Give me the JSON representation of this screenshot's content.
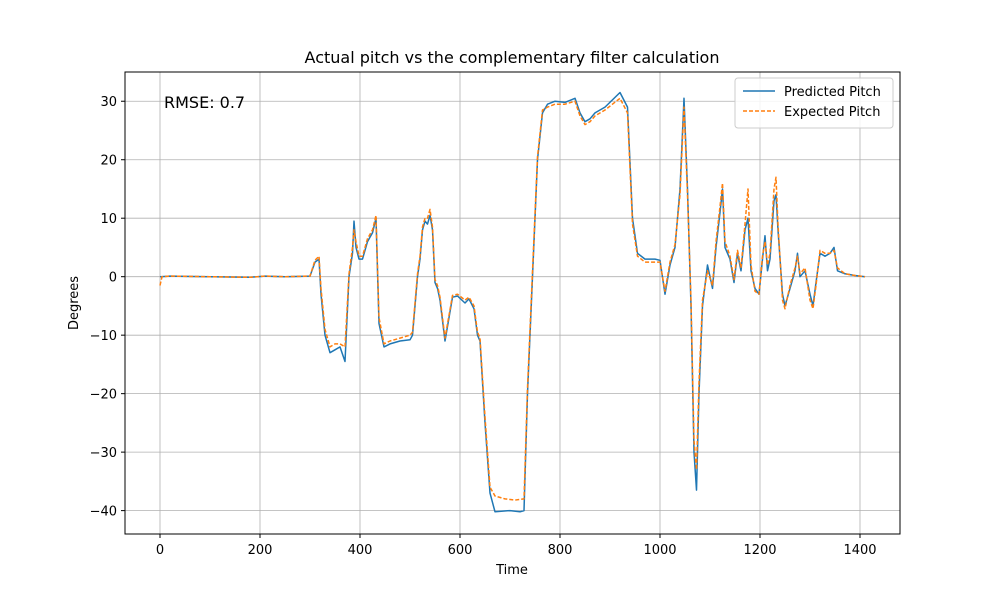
{
  "chart_data": {
    "type": "line",
    "title": "Actual pitch vs the complementary filter calculation",
    "xlabel": "Time",
    "ylabel": "Degrees",
    "xlim": [
      -70,
      1480
    ],
    "ylim": [
      -44,
      35
    ],
    "xticks": [
      0,
      200,
      400,
      600,
      800,
      1000,
      1200,
      1400
    ],
    "yticks": [
      -40,
      -30,
      -20,
      -10,
      0,
      10,
      20,
      30
    ],
    "grid": true,
    "legend_position": "top-right",
    "annotation": "RMSE: 0.7",
    "colors": {
      "predicted": "#1f77b4",
      "expected": "#ff7f0e"
    },
    "series": [
      {
        "name": "Predicted Pitch",
        "style": "solid",
        "points": [
          [
            0,
            0
          ],
          [
            20,
            0.1
          ],
          [
            100,
            0
          ],
          [
            180,
            -0.1
          ],
          [
            210,
            0.1
          ],
          [
            250,
            0
          ],
          [
            300,
            0.1
          ],
          [
            310,
            2.5
          ],
          [
            318,
            3
          ],
          [
            322,
            -3
          ],
          [
            330,
            -10
          ],
          [
            340,
            -13
          ],
          [
            350,
            -12.5
          ],
          [
            360,
            -12
          ],
          [
            370,
            -14.5
          ],
          [
            378,
            0
          ],
          [
            385,
            4
          ],
          [
            388,
            9.5
          ],
          [
            392,
            5
          ],
          [
            398,
            3
          ],
          [
            405,
            3
          ],
          [
            415,
            6
          ],
          [
            425,
            7.5
          ],
          [
            432,
            10
          ],
          [
            438,
            -8
          ],
          [
            448,
            -12
          ],
          [
            460,
            -11.5
          ],
          [
            480,
            -11
          ],
          [
            500,
            -10.8
          ],
          [
            505,
            -10
          ],
          [
            510,
            -5
          ],
          [
            515,
            0
          ],
          [
            520,
            3
          ],
          [
            525,
            8
          ],
          [
            530,
            9.5
          ],
          [
            535,
            9
          ],
          [
            540,
            10.5
          ],
          [
            545,
            8
          ],
          [
            550,
            -1
          ],
          [
            555,
            -2
          ],
          [
            560,
            -4
          ],
          [
            570,
            -11
          ],
          [
            585,
            -3.5
          ],
          [
            595,
            -3.3
          ],
          [
            610,
            -4.5
          ],
          [
            618,
            -3.8
          ],
          [
            628,
            -5.5
          ],
          [
            635,
            -10
          ],
          [
            640,
            -11
          ],
          [
            650,
            -25
          ],
          [
            660,
            -37
          ],
          [
            670,
            -40.2
          ],
          [
            700,
            -40
          ],
          [
            720,
            -40.2
          ],
          [
            728,
            -40
          ],
          [
            735,
            -20
          ],
          [
            745,
            0
          ],
          [
            755,
            20
          ],
          [
            765,
            28
          ],
          [
            775,
            29.5
          ],
          [
            790,
            30
          ],
          [
            810,
            29.8
          ],
          [
            830,
            30.5
          ],
          [
            840,
            28
          ],
          [
            850,
            26.5
          ],
          [
            860,
            27
          ],
          [
            870,
            28
          ],
          [
            890,
            29
          ],
          [
            920,
            31.5
          ],
          [
            935,
            29
          ],
          [
            945,
            10
          ],
          [
            955,
            4
          ],
          [
            970,
            3
          ],
          [
            990,
            3
          ],
          [
            1000,
            2.8
          ],
          [
            1010,
            -3
          ],
          [
            1020,
            2
          ],
          [
            1030,
            5
          ],
          [
            1040,
            15
          ],
          [
            1048,
            30.5
          ],
          [
            1055,
            15
          ],
          [
            1062,
            -5
          ],
          [
            1068,
            -30
          ],
          [
            1073,
            -36.5
          ],
          [
            1078,
            -20
          ],
          [
            1085,
            -5
          ],
          [
            1095,
            2
          ],
          [
            1105,
            -2
          ],
          [
            1112,
            5
          ],
          [
            1120,
            11
          ],
          [
            1125,
            15
          ],
          [
            1130,
            5
          ],
          [
            1140,
            3
          ],
          [
            1148,
            -1
          ],
          [
            1155,
            4
          ],
          [
            1162,
            1
          ],
          [
            1170,
            8
          ],
          [
            1176,
            10
          ],
          [
            1182,
            1
          ],
          [
            1190,
            -2
          ],
          [
            1198,
            -3
          ],
          [
            1205,
            3
          ],
          [
            1210,
            7
          ],
          [
            1215,
            1
          ],
          [
            1220,
            3
          ],
          [
            1228,
            13
          ],
          [
            1232,
            14
          ],
          [
            1236,
            8
          ],
          [
            1245,
            -3
          ],
          [
            1250,
            -5
          ],
          [
            1260,
            -2
          ],
          [
            1270,
            1
          ],
          [
            1275,
            4
          ],
          [
            1280,
            0
          ],
          [
            1290,
            1
          ],
          [
            1300,
            -3
          ],
          [
            1306,
            -5
          ],
          [
            1312,
            -1
          ],
          [
            1320,
            4
          ],
          [
            1330,
            3.5
          ],
          [
            1340,
            4
          ],
          [
            1348,
            5
          ],
          [
            1355,
            1
          ],
          [
            1370,
            0.5
          ],
          [
            1390,
            0.2
          ],
          [
            1410,
            0
          ]
        ]
      },
      {
        "name": "Expected Pitch",
        "style": "dashed",
        "points": [
          [
            0,
            -1.5
          ],
          [
            4,
            0
          ],
          [
            20,
            0.1
          ],
          [
            100,
            0
          ],
          [
            180,
            -0.1
          ],
          [
            210,
            0.1
          ],
          [
            250,
            0
          ],
          [
            300,
            0.1
          ],
          [
            310,
            2.8
          ],
          [
            318,
            3.5
          ],
          [
            322,
            -2
          ],
          [
            330,
            -9
          ],
          [
            340,
            -12
          ],
          [
            350,
            -11.5
          ],
          [
            360,
            -11.5
          ],
          [
            370,
            -12
          ],
          [
            378,
            0.5
          ],
          [
            385,
            5
          ],
          [
            388,
            8
          ],
          [
            392,
            6
          ],
          [
            398,
            3.5
          ],
          [
            405,
            3.5
          ],
          [
            415,
            6.5
          ],
          [
            425,
            8
          ],
          [
            432,
            10.5
          ],
          [
            438,
            -7
          ],
          [
            448,
            -11.5
          ],
          [
            460,
            -11
          ],
          [
            480,
            -10.5
          ],
          [
            500,
            -10
          ],
          [
            505,
            -9.5
          ],
          [
            510,
            -4.5
          ],
          [
            515,
            0.5
          ],
          [
            520,
            3.5
          ],
          [
            525,
            8.5
          ],
          [
            530,
            10
          ],
          [
            535,
            10
          ],
          [
            540,
            11.5
          ],
          [
            545,
            8.5
          ],
          [
            550,
            -0.5
          ],
          [
            555,
            -1.5
          ],
          [
            560,
            -3.5
          ],
          [
            570,
            -10.5
          ],
          [
            585,
            -3.2
          ],
          [
            595,
            -3
          ],
          [
            610,
            -4
          ],
          [
            618,
            -3.5
          ],
          [
            628,
            -5
          ],
          [
            635,
            -9.5
          ],
          [
            640,
            -10.5
          ],
          [
            650,
            -24
          ],
          [
            660,
            -36
          ],
          [
            670,
            -37.5
          ],
          [
            690,
            -38
          ],
          [
            710,
            -38.2
          ],
          [
            728,
            -38
          ],
          [
            735,
            -19
          ],
          [
            745,
            1
          ],
          [
            755,
            20.5
          ],
          [
            765,
            28.5
          ],
          [
            775,
            29
          ],
          [
            790,
            29.5
          ],
          [
            810,
            29.5
          ],
          [
            830,
            30
          ],
          [
            840,
            27.5
          ],
          [
            850,
            26
          ],
          [
            860,
            26.5
          ],
          [
            870,
            27.5
          ],
          [
            890,
            28.5
          ],
          [
            920,
            30.5
          ],
          [
            935,
            28
          ],
          [
            945,
            9
          ],
          [
            955,
            3.5
          ],
          [
            970,
            2.5
          ],
          [
            990,
            2.5
          ],
          [
            1000,
            2.5
          ],
          [
            1010,
            -2.5
          ],
          [
            1020,
            2.5
          ],
          [
            1030,
            5.5
          ],
          [
            1040,
            14
          ],
          [
            1048,
            29
          ],
          [
            1055,
            14
          ],
          [
            1062,
            -4
          ],
          [
            1068,
            -28
          ],
          [
            1073,
            -33
          ],
          [
            1078,
            -18
          ],
          [
            1085,
            -4
          ],
          [
            1095,
            1
          ],
          [
            1105,
            -1.5
          ],
          [
            1112,
            6
          ],
          [
            1120,
            12
          ],
          [
            1125,
            16
          ],
          [
            1130,
            6
          ],
          [
            1140,
            3.5
          ],
          [
            1148,
            -0.5
          ],
          [
            1155,
            4.5
          ],
          [
            1162,
            1.5
          ],
          [
            1170,
            9
          ],
          [
            1176,
            15
          ],
          [
            1182,
            2
          ],
          [
            1190,
            -2.5
          ],
          [
            1198,
            -3
          ],
          [
            1205,
            3.5
          ],
          [
            1210,
            6
          ],
          [
            1215,
            2
          ],
          [
            1220,
            4
          ],
          [
            1228,
            15
          ],
          [
            1232,
            17
          ],
          [
            1236,
            9
          ],
          [
            1245,
            -4
          ],
          [
            1250,
            -5.5
          ],
          [
            1260,
            -1.5
          ],
          [
            1270,
            1.5
          ],
          [
            1275,
            3.5
          ],
          [
            1280,
            0.5
          ],
          [
            1290,
            1.5
          ],
          [
            1300,
            -4
          ],
          [
            1306,
            -5.5
          ],
          [
            1312,
            -1.5
          ],
          [
            1320,
            4.5
          ],
          [
            1330,
            4
          ],
          [
            1340,
            4
          ],
          [
            1348,
            4.5
          ],
          [
            1355,
            1.5
          ],
          [
            1370,
            0.5
          ],
          [
            1390,
            0.2
          ],
          [
            1410,
            0
          ]
        ]
      }
    ]
  }
}
